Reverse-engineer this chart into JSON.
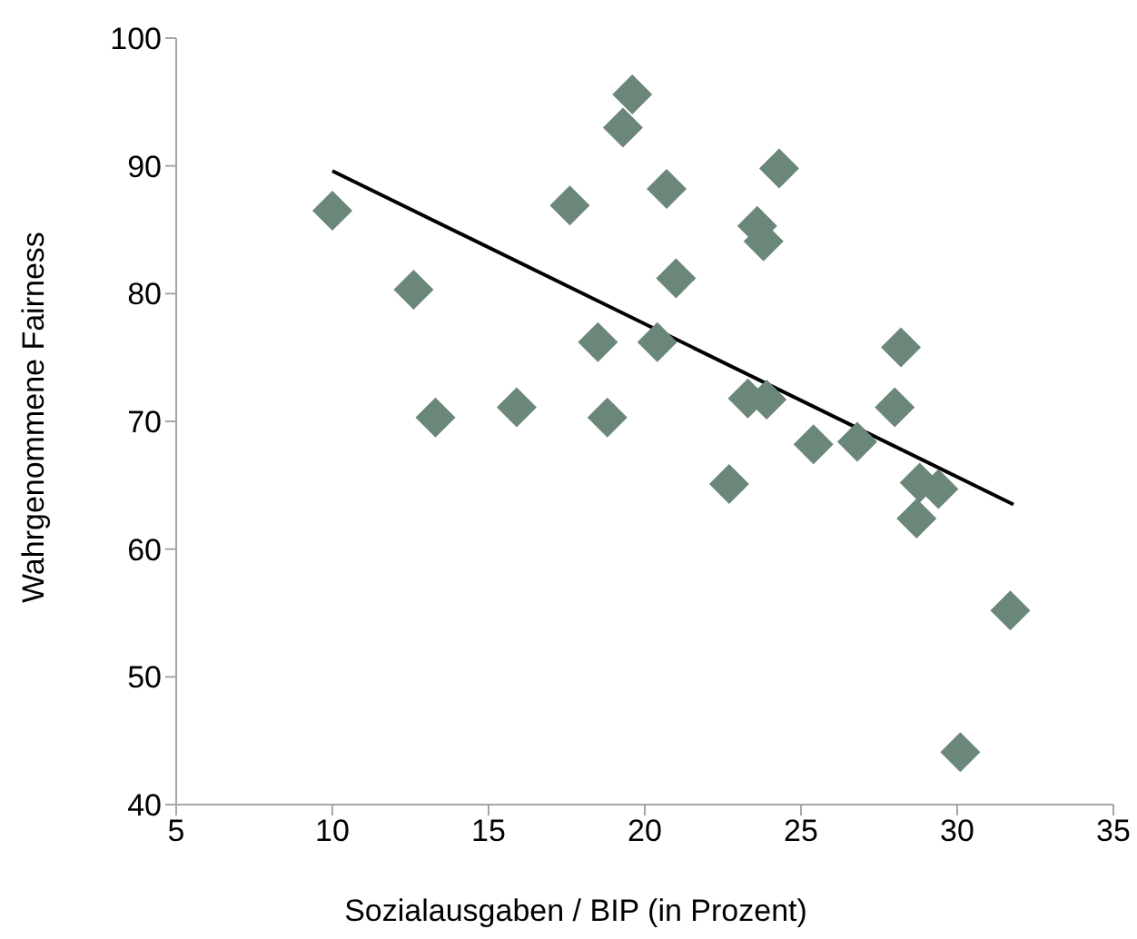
{
  "chart_data": {
    "type": "scatter",
    "xlabel": "Sozialausgaben / BIP (in Prozent)",
    "ylabel": "Wahrgenommene Fairness",
    "xlim": [
      5,
      35
    ],
    "ylim": [
      40,
      100
    ],
    "xticks": [
      5,
      10,
      15,
      20,
      25,
      30,
      35
    ],
    "yticks": [
      40,
      50,
      60,
      70,
      80,
      90,
      100
    ],
    "grid": false,
    "legend": false,
    "series": [
      {
        "color": "#6a8779",
        "marker": "diamond",
        "x": [
          10.0,
          12.6,
          13.3,
          15.9,
          17.6,
          18.5,
          18.8,
          19.3,
          19.6,
          20.4,
          20.7,
          21.0,
          24.3,
          23.6,
          23.8,
          23.3,
          23.9,
          28.2,
          28.0,
          25.4,
          26.8,
          22.7,
          28.8,
          29.4,
          28.7,
          31.7,
          30.1
        ],
        "values": [
          86.5,
          80.3,
          70.3,
          71.1,
          86.9,
          76.2,
          70.3,
          93.0,
          95.6,
          76.2,
          88.2,
          81.2,
          89.8,
          85.3,
          84.1,
          71.8,
          71.7,
          75.8,
          71.1,
          68.2,
          68.4,
          65.1,
          65.2,
          64.7,
          62.4,
          55.2,
          44.1
        ]
      },
      {
        "type": "line",
        "color": "#000000",
        "marker": "none",
        "line_style": "solid",
        "x": [
          10.0,
          31.8
        ],
        "values": [
          89.6,
          63.5
        ]
      }
    ]
  }
}
